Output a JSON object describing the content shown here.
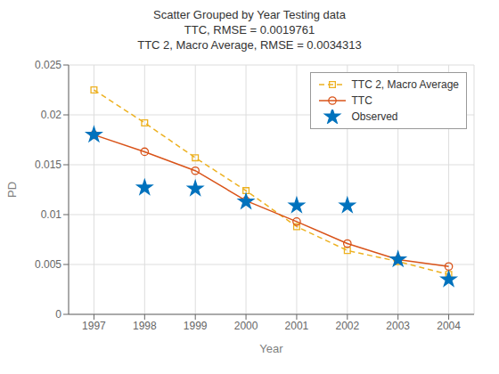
{
  "chart_data": {
    "type": "line",
    "title": "Scatter Grouped by Year Testing data\nTTC, RMSE = 0.0019761\nTTC 2, Macro Average, RMSE = 0.0034313",
    "xlabel": "Year",
    "ylabel": "PD",
    "x": [
      1997,
      1998,
      1999,
      2000,
      2001,
      2002,
      2003,
      2004
    ],
    "series": [
      {
        "name": "TTC 2, Macro Average",
        "type": "line",
        "color": "#EDB120",
        "marker": "square",
        "line_style": "dashed",
        "values": [
          0.0225,
          0.0192,
          0.0157,
          0.0124,
          0.0088,
          0.0064,
          0.0053,
          0.004
        ]
      },
      {
        "name": "TTC",
        "type": "line",
        "color": "#D95319",
        "marker": "circle",
        "line_style": "solid",
        "values": [
          0.018,
          0.0163,
          0.0144,
          0.0114,
          0.0093,
          0.0071,
          0.0055,
          0.0048
        ]
      },
      {
        "name": "Observed",
        "type": "scatter",
        "color": "#0072BD",
        "marker": "star",
        "line_style": "none",
        "values": [
          0.018,
          0.0127,
          0.0126,
          0.0113,
          0.0109,
          0.0109,
          0.0055,
          0.0035
        ]
      }
    ],
    "xlim": [
      1996.5,
      2004.5
    ],
    "xticks": [
      1997,
      1998,
      1999,
      2000,
      2001,
      2002,
      2003,
      2004
    ],
    "ylim": [
      0.0,
      0.025
    ],
    "yticks": [
      0,
      0.005,
      0.01,
      0.015,
      0.02,
      0.025
    ],
    "grid": true,
    "legend": "upper right"
  }
}
